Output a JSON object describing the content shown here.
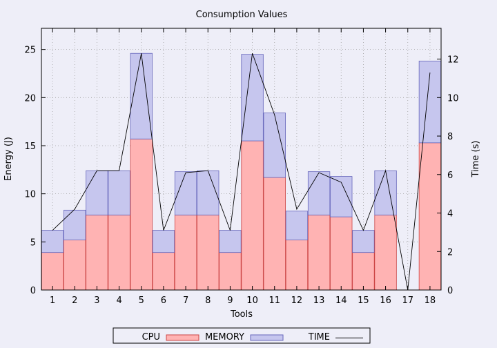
{
  "chart_data": {
    "type": "bar",
    "title": "Consumption Values",
    "xlabel": "Tools",
    "ylabel": "Energy (J)",
    "y2label": "Time (s)",
    "categories": [
      "1",
      "2",
      "3",
      "4",
      "5",
      "6",
      "7",
      "8",
      "9",
      "10",
      "11",
      "12",
      "13",
      "14",
      "15",
      "16",
      "17",
      "18"
    ],
    "ylim": [
      0,
      27.2
    ],
    "y2lim": [
      0,
      13.6
    ],
    "yticks": [
      0,
      5,
      10,
      15,
      20,
      25
    ],
    "y2ticks": [
      0,
      2,
      4,
      6,
      8,
      10,
      12
    ],
    "stacked": true,
    "grid": true,
    "legend_position": "bottom",
    "series": [
      {
        "name": "CPU",
        "type": "bar",
        "color": "#ffffff",
        "values": [
          0,
          0,
          0,
          0,
          0,
          0,
          0,
          0,
          0,
          0,
          0,
          0,
          0,
          0,
          0,
          0,
          0,
          0
        ]
      },
      {
        "name": "MEMORY",
        "type": "bar",
        "color": "#ffb3b3",
        "edge": "#cc4444",
        "values": [
          3.9,
          5.2,
          7.8,
          7.8,
          15.7,
          3.9,
          7.8,
          7.8,
          3.9,
          15.5,
          11.7,
          5.2,
          7.8,
          7.6,
          3.9,
          7.8,
          0,
          15.3
        ]
      },
      {
        "name": "",
        "type": "bar",
        "color": "#c6c6ee",
        "edge": "#6666bb",
        "values": [
          2.3,
          3.1,
          4.6,
          4.6,
          8.9,
          2.3,
          4.5,
          4.6,
          2.3,
          9.0,
          6.7,
          3.0,
          4.5,
          4.2,
          2.3,
          4.6,
          0,
          8.5
        ]
      },
      {
        "name": "TIME",
        "type": "line",
        "axis": "y2",
        "color": "#000000",
        "values": [
          3.1,
          4.2,
          6.2,
          6.2,
          12.3,
          3.1,
          6.1,
          6.2,
          3.1,
          12.3,
          9.1,
          4.2,
          6.1,
          5.6,
          3.1,
          6.2,
          0,
          11.3
        ]
      }
    ]
  }
}
